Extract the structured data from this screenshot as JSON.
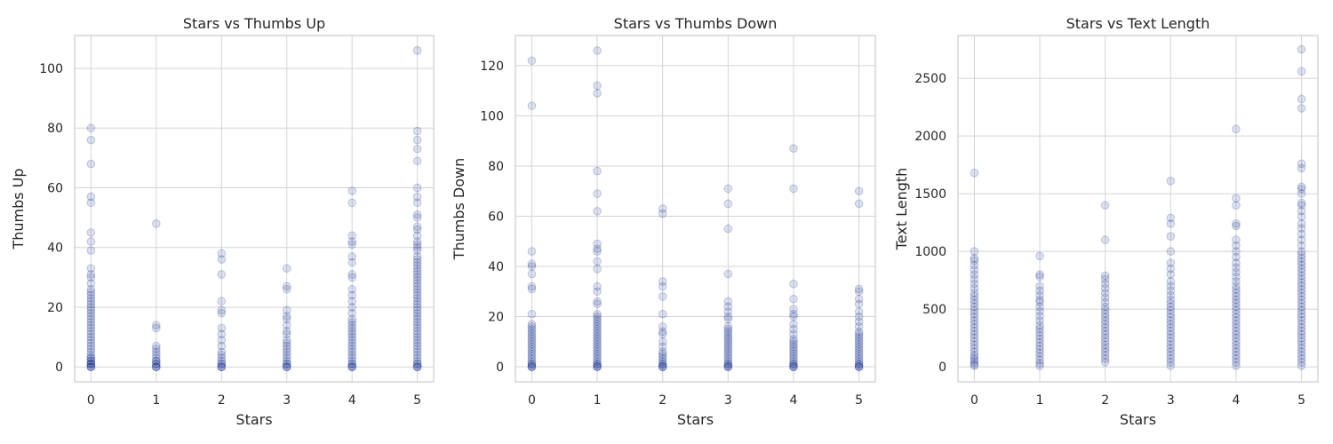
{
  "figure": {
    "point_color": "#001c7f",
    "background": "#ffffff",
    "grid_color": "#d4d4d4"
  },
  "chart_data": [
    {
      "type": "scatter",
      "title": "Stars vs Thumbs Up",
      "xlabel": "Stars",
      "ylabel": "Thumbs Up",
      "xlim": [
        -0.25,
        5.25
      ],
      "ylim": [
        -5,
        111
      ],
      "xticks": [
        0,
        1,
        2,
        3,
        4,
        5
      ],
      "yticks": [
        0,
        20,
        40,
        60,
        80,
        100
      ],
      "grid": true,
      "series": [
        {
          "x": 0,
          "values": [
            0,
            0,
            0,
            1,
            1,
            1,
            2,
            2,
            3,
            3,
            4,
            5,
            6,
            7,
            8,
            9,
            10,
            11,
            12,
            13,
            14,
            15,
            16,
            17,
            18,
            19,
            20,
            21,
            22,
            23,
            24,
            25,
            26,
            28,
            30,
            31,
            33,
            39,
            42,
            45,
            55,
            57,
            68,
            76,
            80
          ]
        },
        {
          "x": 1,
          "values": [
            0,
            0,
            0,
            1,
            1,
            2,
            2,
            3,
            4,
            5,
            6,
            7,
            13,
            14,
            48
          ]
        },
        {
          "x": 2,
          "values": [
            0,
            0,
            0,
            1,
            1,
            2,
            3,
            4,
            5,
            7,
            9,
            11,
            13,
            18,
            19,
            22,
            31,
            36,
            38
          ]
        },
        {
          "x": 3,
          "values": [
            0,
            0,
            0,
            1,
            1,
            2,
            3,
            4,
            5,
            6,
            7,
            8,
            9,
            11,
            12,
            14,
            16,
            17,
            19,
            26,
            27,
            33
          ]
        },
        {
          "x": 4,
          "values": [
            0,
            0,
            0,
            1,
            1,
            2,
            3,
            4,
            5,
            6,
            7,
            8,
            9,
            10,
            11,
            12,
            13,
            14,
            15,
            16,
            18,
            20,
            22,
            24,
            26,
            30,
            31,
            35,
            37,
            41,
            42,
            44,
            55,
            59
          ]
        },
        {
          "x": 5,
          "values": [
            0,
            0,
            0,
            1,
            1,
            2,
            3,
            4,
            5,
            6,
            7,
            8,
            9,
            10,
            11,
            12,
            13,
            14,
            15,
            16,
            17,
            18,
            19,
            20,
            21,
            22,
            23,
            24,
            25,
            26,
            27,
            28,
            29,
            30,
            31,
            32,
            33,
            34,
            35,
            36,
            37,
            39,
            40,
            41,
            42,
            44,
            46,
            47,
            50,
            51,
            55,
            57,
            60,
            69,
            73,
            76,
            79,
            106
          ]
        }
      ]
    },
    {
      "type": "scatter",
      "title": "Stars vs Thumbs Down",
      "xlabel": "Stars",
      "ylabel": "Thumbs Down",
      "xlim": [
        -0.25,
        5.25
      ],
      "ylim": [
        -6,
        132
      ],
      "xticks": [
        0,
        1,
        2,
        3,
        4,
        5
      ],
      "yticks": [
        0,
        20,
        40,
        60,
        80,
        100,
        120
      ],
      "grid": true,
      "series": [
        {
          "x": 0,
          "values": [
            0,
            0,
            0,
            1,
            1,
            2,
            3,
            4,
            5,
            6,
            7,
            8,
            9,
            10,
            11,
            12,
            13,
            14,
            15,
            16,
            17,
            21,
            31,
            32,
            37,
            40,
            41,
            46,
            104,
            122
          ]
        },
        {
          "x": 1,
          "values": [
            0,
            0,
            0,
            1,
            1,
            2,
            3,
            4,
            5,
            6,
            7,
            8,
            9,
            10,
            11,
            12,
            13,
            14,
            15,
            16,
            17,
            18,
            19,
            20,
            21,
            25,
            26,
            30,
            32,
            39,
            42,
            46,
            47,
            49,
            62,
            69,
            78,
            109,
            112,
            126
          ]
        },
        {
          "x": 2,
          "values": [
            0,
            0,
            0,
            1,
            1,
            2,
            3,
            4,
            5,
            6,
            8,
            10,
            13,
            14,
            16,
            21,
            28,
            32,
            34,
            61,
            63
          ]
        },
        {
          "x": 3,
          "values": [
            0,
            0,
            0,
            1,
            1,
            2,
            3,
            4,
            5,
            6,
            7,
            8,
            9,
            10,
            11,
            12,
            13,
            14,
            15,
            16,
            19,
            20,
            22,
            24,
            26,
            37,
            55,
            65,
            71
          ]
        },
        {
          "x": 4,
          "values": [
            0,
            0,
            0,
            1,
            1,
            2,
            3,
            4,
            5,
            6,
            7,
            8,
            9,
            10,
            11,
            13,
            15,
            17,
            20,
            21,
            23,
            27,
            33,
            71,
            87
          ]
        },
        {
          "x": 5,
          "values": [
            0,
            0,
            0,
            1,
            1,
            2,
            3,
            4,
            5,
            6,
            7,
            8,
            9,
            10,
            11,
            12,
            13,
            14,
            16,
            18,
            20,
            22,
            25,
            27,
            30,
            31,
            65,
            70
          ]
        }
      ]
    },
    {
      "type": "scatter",
      "title": "Stars vs Text Length",
      "xlabel": "Stars",
      "ylabel": "Text Length",
      "xlim": [
        -0.25,
        5.25
      ],
      "ylim": [
        -130,
        2870
      ],
      "xticks": [
        0,
        1,
        2,
        3,
        4,
        5
      ],
      "yticks": [
        0,
        500,
        1000,
        1500,
        2000,
        2500
      ],
      "grid": true,
      "series": [
        {
          "x": 0,
          "values": [
            10,
            20,
            40,
            60,
            80,
            100,
            130,
            160,
            190,
            220,
            250,
            280,
            310,
            340,
            370,
            400,
            430,
            460,
            490,
            520,
            550,
            580,
            610,
            640,
            680,
            720,
            760,
            800,
            840,
            880,
            920,
            940,
            1000,
            1680
          ]
        },
        {
          "x": 1,
          "values": [
            10,
            30,
            60,
            90,
            120,
            150,
            180,
            210,
            240,
            270,
            300,
            330,
            360,
            400,
            440,
            480,
            520,
            560,
            580,
            620,
            660,
            700,
            780,
            800,
            960
          ]
        },
        {
          "x": 2,
          "values": [
            40,
            70,
            100,
            130,
            160,
            190,
            220,
            250,
            280,
            310,
            340,
            370,
            400,
            430,
            460,
            490,
            520,
            560,
            600,
            640,
            680,
            720,
            760,
            790,
            1100,
            1400
          ]
        },
        {
          "x": 3,
          "values": [
            10,
            40,
            70,
            100,
            130,
            160,
            190,
            220,
            250,
            280,
            310,
            340,
            370,
            400,
            430,
            460,
            490,
            520,
            550,
            580,
            620,
            660,
            700,
            740,
            800,
            850,
            900,
            1000,
            1130,
            1240,
            1290,
            1610
          ]
        },
        {
          "x": 4,
          "values": [
            10,
            40,
            70,
            100,
            130,
            160,
            190,
            220,
            250,
            280,
            310,
            340,
            370,
            400,
            430,
            460,
            490,
            520,
            550,
            580,
            610,
            640,
            670,
            700,
            740,
            780,
            820,
            860,
            900,
            950,
            1000,
            1050,
            1100,
            1220,
            1240,
            1400,
            1460,
            2060
          ]
        },
        {
          "x": 5,
          "values": [
            10,
            40,
            70,
            100,
            130,
            160,
            190,
            220,
            250,
            280,
            310,
            340,
            370,
            400,
            430,
            460,
            490,
            520,
            550,
            580,
            610,
            640,
            670,
            700,
            730,
            760,
            790,
            820,
            850,
            880,
            910,
            940,
            970,
            1000,
            1050,
            1100,
            1150,
            1200,
            1240,
            1300,
            1350,
            1400,
            1420,
            1500,
            1540,
            1560,
            1720,
            1760,
            2240,
            2320,
            2560,
            2750
          ]
        }
      ]
    }
  ]
}
